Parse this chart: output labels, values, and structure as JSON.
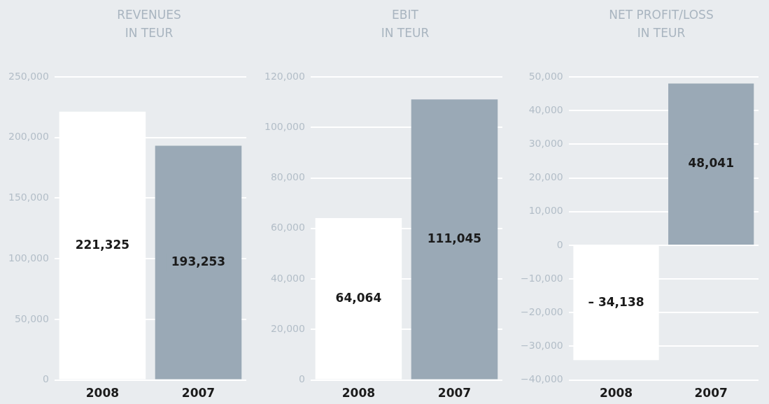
{
  "chart_data": [
    {
      "type": "bar",
      "title": "REVENUES\nIN TEUR",
      "categories": [
        "2008",
        "2007"
      ],
      "values": [
        221325,
        193253
      ],
      "colors": [
        "#ffffff",
        "#9aa9b6"
      ],
      "value_labels": [
        "221,325",
        "193,253"
      ],
      "ylim": [
        0,
        250000
      ],
      "yticks": [
        {
          "value": 0,
          "label": "0"
        },
        {
          "value": 50000,
          "label": "50,000"
        },
        {
          "value": 100000,
          "label": "100,000"
        },
        {
          "value": 150000,
          "label": "150,000"
        },
        {
          "value": 200000,
          "label": "200,000"
        },
        {
          "value": 250000,
          "label": "250,000"
        }
      ],
      "grid": "y"
    },
    {
      "type": "bar",
      "title": "EBIT\nIN TEUR",
      "categories": [
        "2008",
        "2007"
      ],
      "values": [
        64064,
        111045
      ],
      "colors": [
        "#ffffff",
        "#9aa9b6"
      ],
      "value_labels": [
        "64,064",
        "111,045"
      ],
      "ylim": [
        0,
        120000
      ],
      "yticks": [
        {
          "value": 0,
          "label": "0"
        },
        {
          "value": 20000,
          "label": "20,000"
        },
        {
          "value": 40000,
          "label": "40,000"
        },
        {
          "value": 60000,
          "label": "60,000"
        },
        {
          "value": 80000,
          "label": "80,000"
        },
        {
          "value": 100000,
          "label": "100,000"
        },
        {
          "value": 120000,
          "label": "120,000"
        }
      ],
      "grid": "y"
    },
    {
      "type": "bar",
      "title": "NET PROFIT/LOSS\nIN TEUR",
      "categories": [
        "2008",
        "2007"
      ],
      "values": [
        -34138,
        48041
      ],
      "colors": [
        "#ffffff",
        "#9aa9b6"
      ],
      "value_labels": [
        "– 34,138",
        "48,041"
      ],
      "ylim": [
        -40000,
        50000
      ],
      "yticks": [
        {
          "value": -40000,
          "label": "−40,000"
        },
        {
          "value": -30000,
          "label": "−30,000"
        },
        {
          "value": -20000,
          "label": "−20,000"
        },
        {
          "value": -10000,
          "label": "−10,000"
        },
        {
          "value": 0,
          "label": "0"
        },
        {
          "value": 10000,
          "label": "10,000"
        },
        {
          "value": 20000,
          "label": "20,000"
        },
        {
          "value": 30000,
          "label": "30,000"
        },
        {
          "value": 40000,
          "label": "40,000"
        },
        {
          "value": 50000,
          "label": "50,000"
        }
      ],
      "grid": "y"
    }
  ]
}
